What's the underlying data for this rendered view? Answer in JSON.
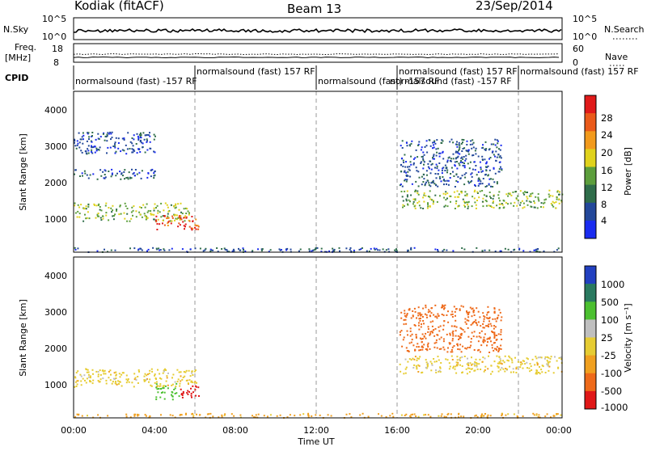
{
  "header": {
    "station": "Kodiak (fitACF)",
    "beam": "Beam 13",
    "date": "23/Sep/2014"
  },
  "status_panels": {
    "nsky_label": "N.Sky",
    "nsky_ticks": [
      "10^5",
      "10^0"
    ],
    "nsearch_label": "N.Search",
    "nsearch_ticks": [
      "10^5",
      "10^0"
    ],
    "freq_label": "Freq.",
    "freq_unit": "[MHz]",
    "freq_ticks": [
      "18",
      "8"
    ],
    "nave_label": "Nave",
    "nave_ticks": [
      "60",
      "0"
    ],
    "cpid_label": "CPID",
    "cpid_segments": [
      {
        "name": "normalsound (fast) -157 RF"
      },
      {
        "name": "normalsound (fast) 157 RF"
      },
      {
        "name": "normalsound (fast) -157 RF"
      },
      {
        "name": "normalsound (fast) 157 RF"
      },
      {
        "name": "normalsound (fast) -157 RF"
      },
      {
        "name": "normalsound (fast) 157 RF"
      }
    ]
  },
  "axes": {
    "ylabel": "Slant Range [km]",
    "yticks": [
      "1000",
      "2000",
      "3000",
      "4000"
    ],
    "xticks": [
      "00:00",
      "04:00",
      "08:00",
      "12:00",
      "16:00",
      "20:00",
      "00:00"
    ],
    "xlabel": "Time UT"
  },
  "colorbars": {
    "power": {
      "label": "Power [dB]",
      "ticks": [
        "4",
        "8",
        "12",
        "16",
        "20",
        "24",
        "28"
      ],
      "colors": [
        "#1a2cf0",
        "#23489a",
        "#2f6d4a",
        "#5c9e3c",
        "#e0d21c",
        "#f29a1c",
        "#ea5a1a",
        "#e01a1a"
      ]
    },
    "velocity": {
      "label": "Velocity [m s⁻¹]",
      "ticks": [
        "1000",
        "500",
        "100",
        "25",
        "-25",
        "-100",
        "-500",
        "-1000"
      ],
      "colors": [
        "#2240c0",
        "#2a7a60",
        "#4cc030",
        "#bfbfbf",
        "#e6cc33",
        "#f0a020",
        "#ee6a1a",
        "#e01818"
      ]
    }
  },
  "chart_data": [
    {
      "type": "heatmap",
      "title": "Power",
      "xlabel": "Time UT",
      "ylabel": "Slant Range [km]",
      "x_range": [
        "00:00",
        "24:00"
      ],
      "ylim": [
        180,
        4600
      ],
      "colorbar_label": "Power [dB]",
      "colorbar_range": [
        0,
        30
      ],
      "echo_bands": [
        {
          "start": "00:00",
          "end": "05:40",
          "range_km": [
            1050,
            1550
          ],
          "power_db": 14
        },
        {
          "start": "04:00",
          "end": "06:10",
          "range_km": [
            800,
            1200
          ],
          "power_db": 26
        },
        {
          "start": "00:00",
          "end": "04:00",
          "range_km": [
            2200,
            2500
          ],
          "power_db": 6
        },
        {
          "start": "00:00",
          "end": "04:00",
          "range_km": [
            2900,
            3500
          ],
          "power_db": 5
        },
        {
          "start": "16:00",
          "end": "24:00",
          "range_km": [
            1400,
            1900
          ],
          "power_db": 14
        },
        {
          "start": "16:00",
          "end": "21:00",
          "range_km": [
            2000,
            3300
          ],
          "power_db": 6
        },
        {
          "start": "00:00",
          "end": "24:00",
          "range_km": [
            200,
            320
          ],
          "power_db": 6
        }
      ]
    },
    {
      "type": "heatmap",
      "title": "Velocity",
      "xlabel": "Time UT",
      "ylabel": "Slant Range [km]",
      "x_range": [
        "00:00",
        "24:00"
      ],
      "ylim": [
        180,
        4600
      ],
      "colorbar_label": "Velocity [m s⁻¹]",
      "colorbar_range": [
        -1000,
        1000
      ],
      "echo_bands": [
        {
          "start": "00:00",
          "end": "06:00",
          "range_km": [
            1050,
            1550
          ],
          "velocity": 0
        },
        {
          "start": "04:00",
          "end": "05:10",
          "range_km": [
            700,
            1150
          ],
          "velocity": 150
        },
        {
          "start": "05:10",
          "end": "06:10",
          "range_km": [
            750,
            1100
          ],
          "velocity": -600
        },
        {
          "start": "16:00",
          "end": "24:00",
          "range_km": [
            1400,
            1900
          ],
          "velocity": 0
        },
        {
          "start": "16:00",
          "end": "21:00",
          "range_km": [
            2000,
            3300
          ],
          "velocity": -300
        },
        {
          "start": "00:00",
          "end": "24:00",
          "range_km": [
            200,
            320
          ],
          "velocity": -50
        }
      ]
    }
  ]
}
